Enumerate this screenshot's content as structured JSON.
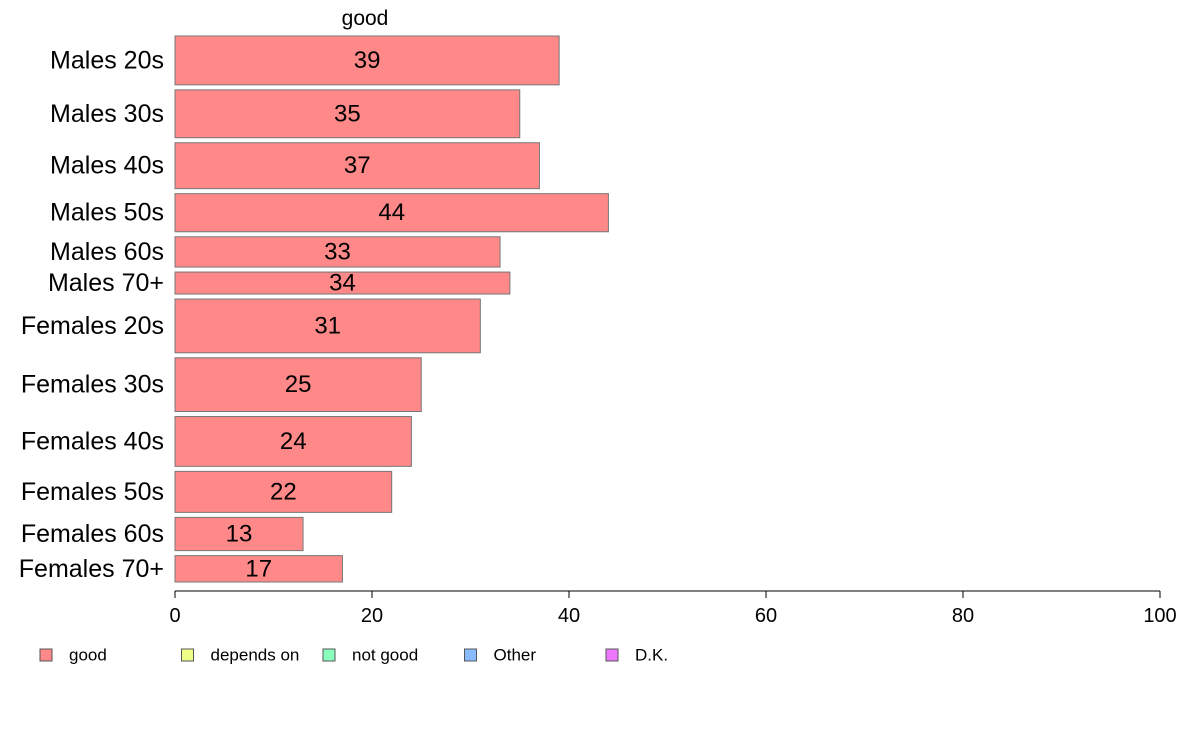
{
  "chart_data": {
    "type": "bar",
    "orientation": "horizontal",
    "title": "good",
    "categories": [
      "Males 20s",
      "Males 30s",
      "Males 40s",
      "Males 50s",
      "Males 60s",
      "Males 70+",
      "Females 20s",
      "Females 30s",
      "Females 40s",
      "Females 50s",
      "Females 60s",
      "Females 70+"
    ],
    "series": [
      {
        "name": "good",
        "values": [
          39,
          35,
          37,
          44,
          33,
          34,
          31,
          25,
          24,
          22,
          13,
          17
        ],
        "color": "#ff8888"
      }
    ],
    "data_labels": [
      "39",
      "35",
      "37",
      "44",
      "33",
      "34",
      "31",
      "25",
      "24",
      "22",
      "13",
      "17"
    ],
    "relative_bar_thickness": [
      1.0,
      0.98,
      0.94,
      0.78,
      0.62,
      0.45,
      1.1,
      1.1,
      1.02,
      0.84,
      0.68,
      0.54
    ],
    "xlim": [
      0,
      100
    ],
    "xticks": [
      0,
      20,
      40,
      60,
      80,
      100
    ],
    "xtick_labels": [
      "0",
      "20",
      "40",
      "60",
      "80",
      "100"
    ],
    "xlabel": "",
    "ylabel": "",
    "grid": false,
    "legend": {
      "placement": "bottom-left",
      "items": [
        {
          "label": "good",
          "color": "#ff8888"
        },
        {
          "label": "depends on",
          "color": "#eeff88"
        },
        {
          "label": "not good",
          "color": "#88ffbb"
        },
        {
          "label": "Other",
          "color": "#88bbff"
        },
        {
          "label": "D.K.",
          "color": "#ee77ff"
        }
      ]
    }
  }
}
